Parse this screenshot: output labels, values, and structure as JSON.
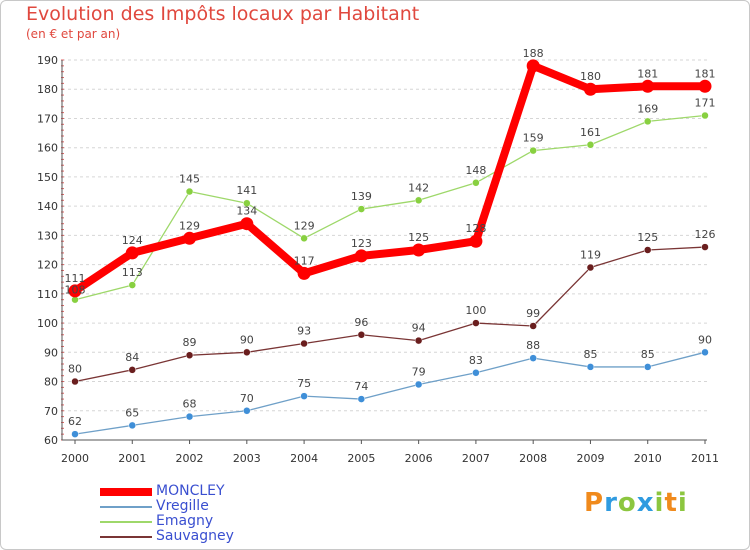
{
  "title": "Evolution des Impôts locaux par Habitant",
  "subtitle": "(en € et par an)",
  "logo": {
    "text": "Proxiti"
  },
  "chart_data": {
    "type": "line",
    "title": "Evolution des Impôts locaux par Habitant",
    "subtitle": "(en € et par an)",
    "categories": [
      "2000",
      "2001",
      "2002",
      "2003",
      "2004",
      "2005",
      "2006",
      "2007",
      "2008",
      "2009",
      "2010",
      "2011"
    ],
    "ylim": [
      60,
      190
    ],
    "yticks": [
      60,
      70,
      80,
      90,
      100,
      110,
      120,
      130,
      140,
      150,
      160,
      170,
      180,
      190
    ],
    "grid": "horizontal",
    "legend_position": "bottom-left",
    "series": [
      {
        "name": "MONCLEY",
        "color": "#ff0000",
        "values": [
          111,
          124,
          129,
          134,
          117,
          123,
          125,
          128,
          188,
          180,
          181,
          181
        ]
      },
      {
        "name": "Vregille",
        "color": "#6fa0c8",
        "point_color": "#3f8fd8",
        "values": [
          62,
          65,
          68,
          70,
          75,
          74,
          79,
          83,
          88,
          85,
          85,
          90
        ]
      },
      {
        "name": "Emagny",
        "color": "#9ed86a",
        "point_color": "#88d040",
        "values": [
          108,
          113,
          145,
          141,
          129,
          139,
          142,
          148,
          159,
          161,
          169,
          171
        ]
      },
      {
        "name": "Sauvagney",
        "color": "#7a3535",
        "point_color": "#6a1e1e",
        "values": [
          80,
          84,
          89,
          90,
          93,
          96,
          94,
          100,
          99,
          119,
          125,
          126
        ]
      }
    ]
  }
}
